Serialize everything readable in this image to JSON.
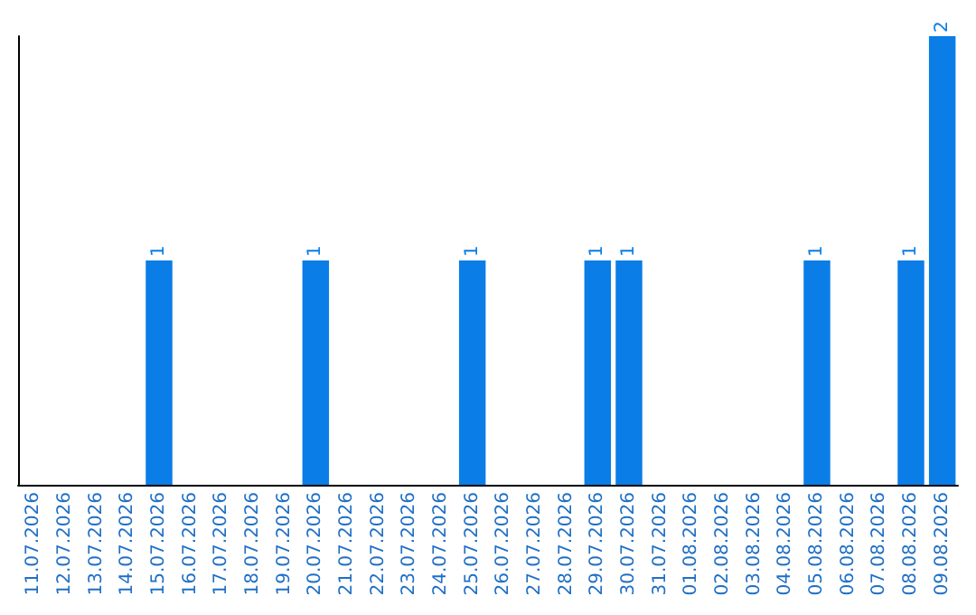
{
  "chart_data": {
    "type": "bar",
    "categories": [
      "11.07.2026",
      "12.07.2026",
      "13.07.2026",
      "14.07.2026",
      "15.07.2026",
      "16.07.2026",
      "17.07.2026",
      "18.07.2026",
      "19.07.2026",
      "20.07.2026",
      "21.07.2026",
      "22.07.2026",
      "23.07.2026",
      "24.07.2026",
      "25.07.2026",
      "26.07.2026",
      "27.07.2026",
      "28.07.2026",
      "29.07.2026",
      "30.07.2026",
      "31.07.2026",
      "01.08.2026",
      "02.08.2026",
      "03.08.2026",
      "04.08.2026",
      "05.08.2026",
      "06.08.2026",
      "07.08.2026",
      "08.08.2026",
      "09.08.2026"
    ],
    "values": [
      0,
      0,
      0,
      0,
      1,
      0,
      0,
      0,
      0,
      1,
      0,
      0,
      0,
      0,
      1,
      0,
      0,
      0,
      1,
      1,
      0,
      0,
      0,
      0,
      0,
      1,
      0,
      0,
      1,
      2
    ],
    "value_labels": [
      null,
      null,
      null,
      null,
      "1",
      null,
      null,
      null,
      null,
      "1",
      null,
      null,
      null,
      null,
      "1",
      null,
      null,
      null,
      "1",
      "1",
      null,
      null,
      null,
      null,
      null,
      "1",
      null,
      null,
      "1",
      "2"
    ],
    "color": "#0a7de6"
  }
}
